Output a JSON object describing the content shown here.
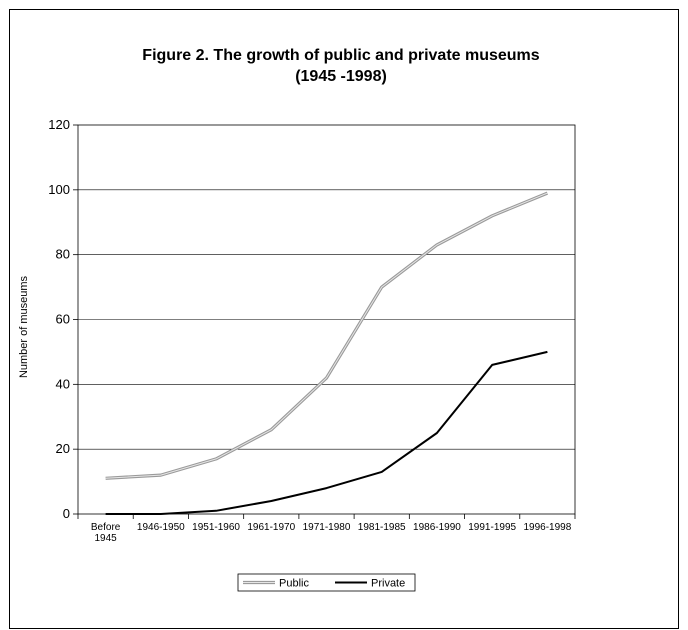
{
  "chart_data": {
    "type": "line",
    "title": "Figure 2. The growth of public and private museums",
    "subtitle": "(1945 -1998)",
    "xlabel": "",
    "ylabel": "Number of museums",
    "categories": [
      [
        "Before",
        "1945"
      ],
      [
        "1946-1950"
      ],
      [
        "1951-1960"
      ],
      [
        "1961-1970"
      ],
      [
        "1971-1980"
      ],
      [
        "1981-1985"
      ],
      [
        "1986-1990"
      ],
      [
        "1991-1995"
      ],
      [
        "1996-1998"
      ]
    ],
    "ylim": [
      0,
      120
    ],
    "yticks": [
      "0",
      "20",
      "40",
      "60",
      "80",
      "100",
      "120"
    ],
    "grid": true,
    "legend_position": "bottom",
    "series": [
      {
        "name": "Public",
        "values": [
          11,
          12,
          17,
          26,
          42,
          70,
          83,
          92,
          99
        ],
        "color": "#9a9a9a",
        "style": "double"
      },
      {
        "name": "Private",
        "values": [
          0,
          0,
          1,
          4,
          8,
          13,
          25,
          46,
          50
        ],
        "color": "#000000",
        "style": "solid"
      }
    ]
  }
}
